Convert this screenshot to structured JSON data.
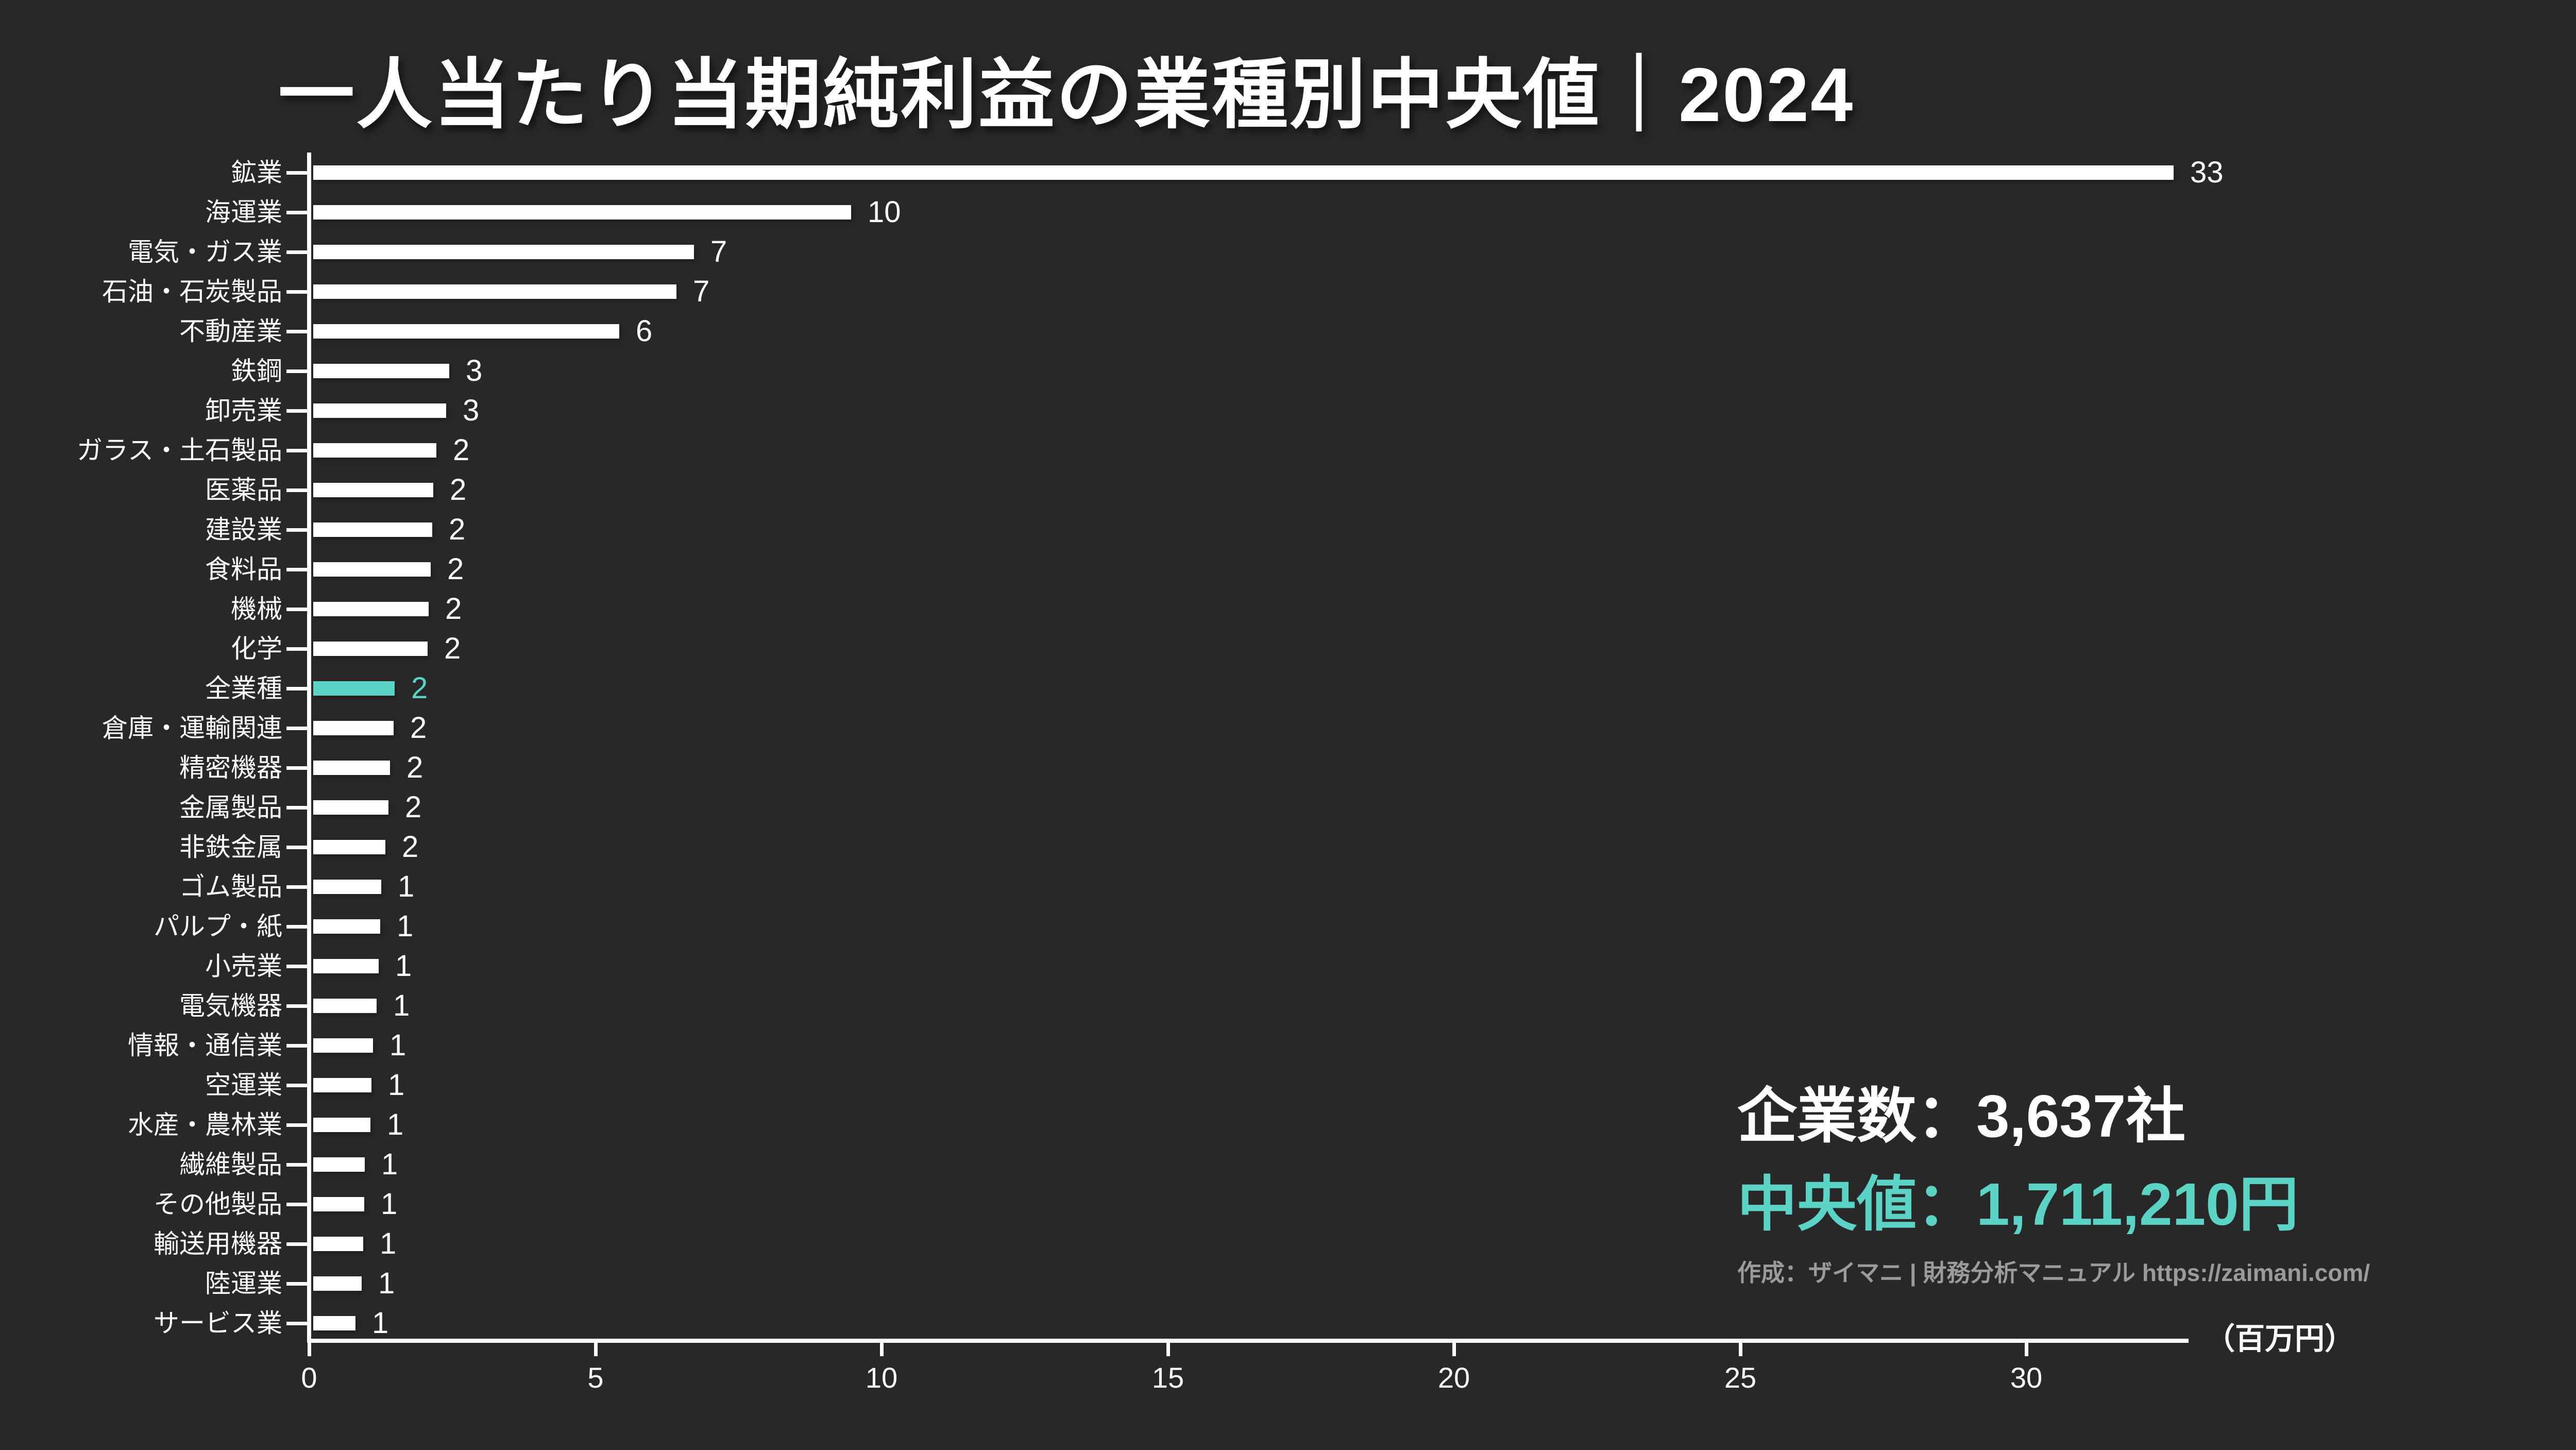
{
  "title": "一人当たり当期純利益の業種別中央値｜2024",
  "chart_data": {
    "type": "bar",
    "orientation": "horizontal",
    "title": "一人当たり当期純利益の業種別中央値｜2024",
    "unit_label": "（百万円）",
    "x_ticks": [
      0,
      5,
      10,
      15,
      20,
      25,
      30
    ],
    "xlim": [
      0,
      32.8
    ],
    "grid": false,
    "legend": "none",
    "highlight_category": "全業種",
    "categories": [
      "鉱業",
      "海運業",
      "電気・ガス業",
      "石油・石炭製品",
      "不動産業",
      "鉄鋼",
      "卸売業",
      "ガラス・土石製品",
      "医薬品",
      "建設業",
      "食料品",
      "機械",
      "化学",
      "全業種",
      "倉庫・運輸関連",
      "精密機器",
      "金属製品",
      "非鉄金属",
      "ゴム製品",
      "パルプ・紙",
      "小売業",
      "電気機器",
      "情報・通信業",
      "空運業",
      "水産・農林業",
      "繊維製品",
      "その他製品",
      "輸送用機器",
      "陸運業",
      "サービス業"
    ],
    "values": [
      33,
      10,
      7,
      7,
      6,
      3,
      3,
      2,
      2,
      2,
      2,
      2,
      2,
      2,
      2,
      2,
      2,
      2,
      1,
      1,
      1,
      1,
      1,
      1,
      1,
      1,
      1,
      1,
      1,
      1
    ],
    "bar_units_estimated": [
      32.5,
      9.4,
      6.65,
      6.35,
      5.35,
      2.38,
      2.32,
      2.15,
      2.1,
      2.08,
      2.05,
      2.02,
      2.0,
      1.42,
      1.4,
      1.34,
      1.31,
      1.26,
      1.19,
      1.17,
      1.14,
      1.11,
      1.04,
      1.02,
      1.0,
      0.9,
      0.89,
      0.87,
      0.85,
      0.74
    ],
    "colors": {
      "background": "#282828",
      "bar": "#ffffff",
      "highlight": "#5bd4c5",
      "text": "#ffffff",
      "credit_text": "#9b9b9b"
    }
  },
  "annotation": {
    "companies": "企業数：3,637社",
    "median": "中央値：1,711,210円",
    "credit": "作成：ザイマニ | 財務分析マニュアル https://zaimani.com/"
  }
}
